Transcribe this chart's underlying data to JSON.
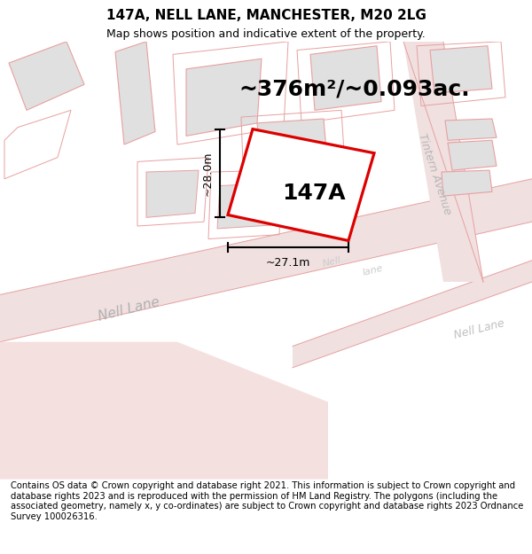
{
  "title": "147A, NELL LANE, MANCHESTER, M20 2LG",
  "subtitle": "Map shows position and indicative extent of the property.",
  "area_text": "~376m²/~0.093ac.",
  "property_label": "147A",
  "dim_h": "~28.0m",
  "dim_w": "~27.1m",
  "footer_text": "Contains OS data © Crown copyright and database right 2021. This information is subject to Crown copyright and database rights 2023 and is reproduced with the permission of HM Land Registry. The polygons (including the associated geometry, namely x, y co-ordinates) are subject to Crown copyright and database rights 2023 Ordnance Survey 100026316.",
  "map_bg": "#ffffff",
  "road_fill": "#f0e0e0",
  "building_fill": "#e0e0e0",
  "building_stroke": "#e8a0a0",
  "road_stroke": "#e8a0a0",
  "plot_stroke": "#dd0000",
  "plot_outline_stroke": "#e8a0a0",
  "dim_color": "#000000",
  "text_color": "#000000",
  "nell_lane_label_color": "#b0b0b0",
  "tintern_label_color": "#b8b8b8",
  "title_fontsize": 11,
  "subtitle_fontsize": 9,
  "area_fontsize": 18,
  "label_fontsize": 18,
  "footer_fontsize": 7.2,
  "dim_fontsize": 9,
  "street_fontsize": 11
}
